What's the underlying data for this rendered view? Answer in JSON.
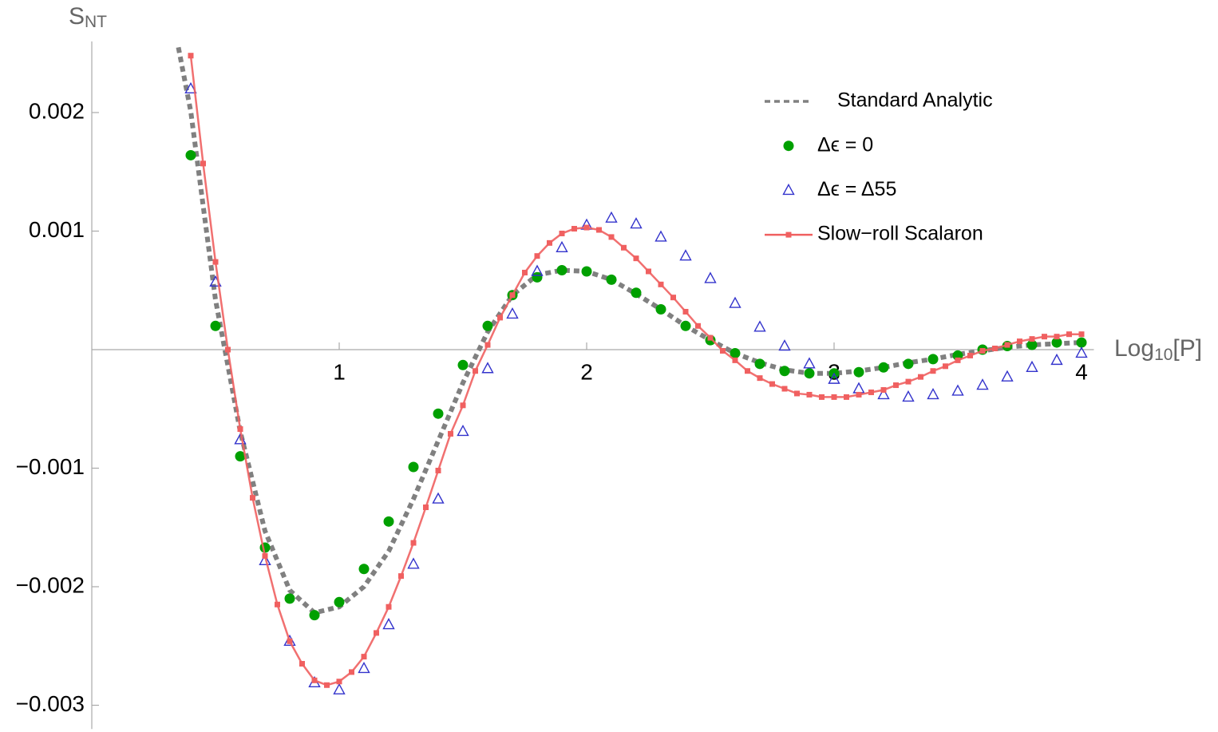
{
  "chart_data": {
    "type": "line",
    "ylabel": {
      "base": "S",
      "sub": "NT"
    },
    "xlabel": {
      "base": "Log",
      "sub": "10",
      "rest": "[P]"
    },
    "xlim": [
      0,
      4.05
    ],
    "ylim": [
      -0.0032,
      0.0026
    ],
    "xticks": [
      1,
      2,
      3,
      4
    ],
    "yticks": [
      {
        "value": -0.003,
        "label": "−0.003"
      },
      {
        "value": -0.002,
        "label": "−0.002"
      },
      {
        "value": -0.001,
        "label": "−0.001"
      },
      0.001,
      0.002
    ],
    "legend": "upper right",
    "series": [
      {
        "name": "Standard Analytic",
        "color": "#808080",
        "line": "dashed",
        "marker": null,
        "x": [
          0.35,
          0.4,
          0.5,
          0.6,
          0.7,
          0.8,
          0.9,
          1.0,
          1.1,
          1.2,
          1.3,
          1.4,
          1.5,
          1.6,
          1.7,
          1.8,
          1.9,
          2.0,
          2.1,
          2.2,
          2.3,
          2.4,
          2.5,
          2.6,
          2.7,
          2.8,
          2.9,
          3.0,
          3.1,
          3.2,
          3.3,
          3.4,
          3.5,
          3.6,
          3.7,
          3.8,
          3.9,
          4.0
        ],
        "values": [
          0.00255,
          0.00201,
          0.00042,
          -0.00069,
          -0.00153,
          -0.00203,
          -0.00222,
          -0.00217,
          -0.002,
          -0.0017,
          -0.00126,
          -0.00077,
          -0.00028,
          0.00015,
          0.00046,
          0.00063,
          0.00067,
          0.00066,
          0.00059,
          0.00047,
          0.00034,
          0.0002,
          8e-05,
          -3e-05,
          -0.00011,
          -0.00017,
          -0.0002,
          -0.0002,
          -0.00018,
          -0.00015,
          -0.00011,
          -8e-05,
          -4e-05,
          -1e-05,
          2e-05,
          4e-05,
          5e-05,
          6e-05
        ]
      },
      {
        "name": "Δϵ = 0",
        "color": "#00a000",
        "line": null,
        "marker": "circle",
        "x": [
          0.4,
          0.5,
          0.6,
          0.7,
          0.8,
          0.9,
          1.0,
          1.1,
          1.2,
          1.3,
          1.4,
          1.5,
          1.6,
          1.7,
          1.8,
          1.9,
          2.0,
          2.1,
          2.2,
          2.3,
          2.4,
          2.5,
          2.6,
          2.7,
          2.8,
          2.9,
          3.0,
          3.1,
          3.2,
          3.3,
          3.4,
          3.5,
          3.6,
          3.7,
          3.8,
          3.9,
          4.0
        ],
        "values": [
          0.00164,
          0.0002,
          -0.0009,
          -0.00167,
          -0.0021,
          -0.00224,
          -0.00213,
          -0.00185,
          -0.00145,
          -0.00099,
          -0.00054,
          -0.00013,
          0.0002,
          0.00046,
          0.00061,
          0.00067,
          0.00066,
          0.00059,
          0.00048,
          0.00034,
          0.0002,
          8e-05,
          -3e-05,
          -0.00012,
          -0.00018,
          -0.0002,
          -0.0002,
          -0.00019,
          -0.00015,
          -0.00012,
          -8e-05,
          -5e-05,
          0,
          3e-05,
          4e-05,
          6e-05,
          6e-05
        ]
      },
      {
        "name": "Δϵ = Δ55",
        "color": "#3333cc",
        "line": null,
        "marker": "triangle",
        "x": [
          0.4,
          0.5,
          0.6,
          0.7,
          0.8,
          0.9,
          1.0,
          1.1,
          1.2,
          1.3,
          1.4,
          1.5,
          1.6,
          1.7,
          1.8,
          1.9,
          2.0,
          2.1,
          2.2,
          2.3,
          2.4,
          2.5,
          2.6,
          2.7,
          2.8,
          2.9,
          3.0,
          3.1,
          3.2,
          3.3,
          3.4,
          3.5,
          3.6,
          3.7,
          3.8,
          3.9,
          4.0
        ],
        "values": [
          0.0022,
          0.00057,
          -0.00076,
          -0.00178,
          -0.00246,
          -0.00281,
          -0.00287,
          -0.00269,
          -0.00232,
          -0.00181,
          -0.00126,
          -0.00069,
          -0.00016,
          0.0003,
          0.00066,
          0.00086,
          0.00105,
          0.00111,
          0.00106,
          0.00095,
          0.00079,
          0.0006,
          0.00039,
          0.00019,
          3e-05,
          -0.00012,
          -0.00025,
          -0.00033,
          -0.00038,
          -0.0004,
          -0.00038,
          -0.00035,
          -0.0003,
          -0.00023,
          -0.00015,
          -9e-05,
          -3e-05
        ]
      },
      {
        "name": "Slow−roll Scalaron",
        "color": "#f06060",
        "line": "solid",
        "marker": "square",
        "x": [
          0.4,
          0.45,
          0.5,
          0.55,
          0.6,
          0.65,
          0.7,
          0.75,
          0.8,
          0.85,
          0.9,
          0.95,
          1.0,
          1.05,
          1.1,
          1.15,
          1.2,
          1.25,
          1.3,
          1.35,
          1.4,
          1.45,
          1.5,
          1.55,
          1.6,
          1.65,
          1.7,
          1.75,
          1.8,
          1.85,
          1.9,
          1.95,
          2.0,
          2.05,
          2.1,
          2.15,
          2.2,
          2.25,
          2.3,
          2.35,
          2.4,
          2.45,
          2.5,
          2.55,
          2.6,
          2.65,
          2.7,
          2.75,
          2.8,
          2.85,
          2.9,
          2.95,
          3.0,
          3.05,
          3.1,
          3.15,
          3.2,
          3.25,
          3.3,
          3.35,
          3.4,
          3.45,
          3.5,
          3.55,
          3.6,
          3.65,
          3.7,
          3.75,
          3.8,
          3.85,
          3.9,
          3.95,
          4.0
        ],
        "values": [
          0.00248,
          0.00157,
          0.00074,
          0,
          -0.00067,
          -0.00125,
          -0.00174,
          -0.00215,
          -0.00246,
          -0.00265,
          -0.00279,
          -0.00283,
          -0.0028,
          -0.00272,
          -0.00259,
          -0.00239,
          -0.00217,
          -0.00191,
          -0.00163,
          -0.00133,
          -0.00102,
          -0.00071,
          -0.00047,
          -0.00018,
          4e-05,
          0.00027,
          0.00046,
          0.00065,
          0.00079,
          0.0009,
          0.00098,
          0.00102,
          0.00103,
          0.00101,
          0.00095,
          0.00086,
          0.00077,
          0.00066,
          0.00055,
          0.00044,
          0.00032,
          0.0002,
          0.0001,
          -1e-05,
          -9e-05,
          -0.00018,
          -0.00024,
          -0.00029,
          -0.00033,
          -0.00037,
          -0.00038,
          -0.0004,
          -0.0004,
          -0.0004,
          -0.00038,
          -0.00036,
          -0.00034,
          -0.0003,
          -0.00027,
          -0.00023,
          -0.00018,
          -0.00014,
          -9e-05,
          -5e-05,
          -1e-05,
          1e-05,
          4e-05,
          7e-05,
          9e-05,
          0.00011,
          0.00011,
          0.00013,
          0.00013
        ]
      }
    ]
  }
}
